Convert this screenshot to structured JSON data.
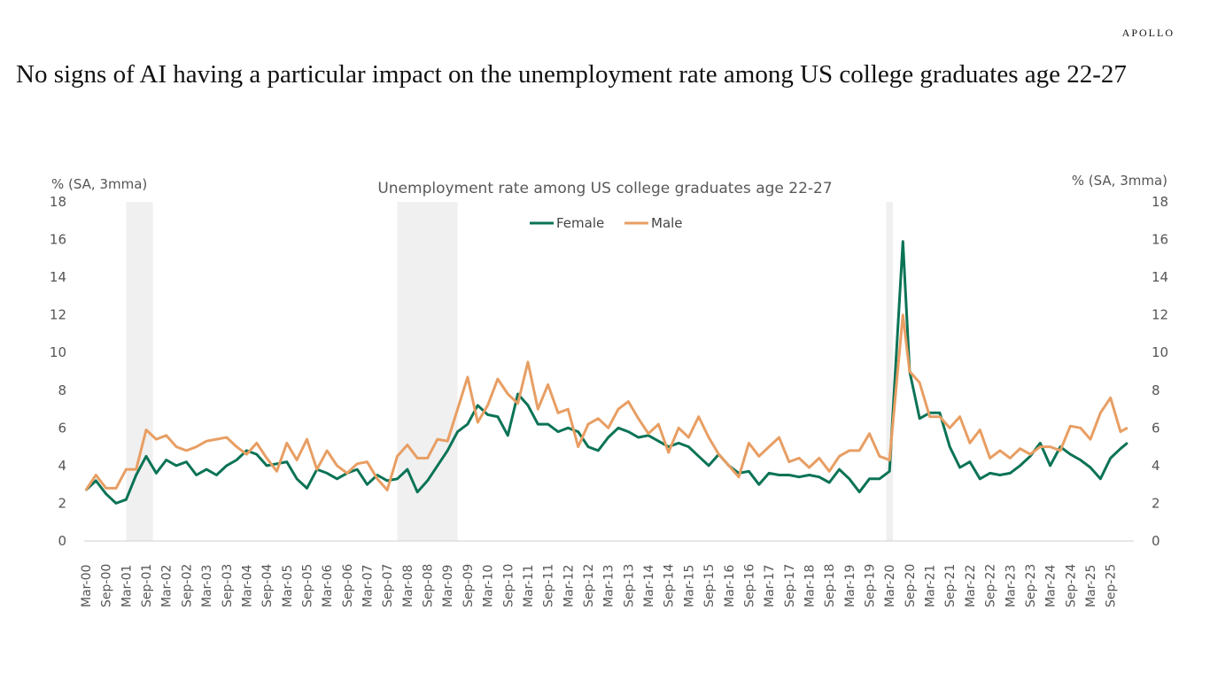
{
  "brand": "APOLLO",
  "headline": "No signs of AI having a particular impact on the unemployment rate among US college graduates age 22-27",
  "chart_data": {
    "type": "line",
    "title": "Unemployment rate among US college graduates age 22-27",
    "ylabel_left": "% (SA, 3mma)",
    "ylabel_right": "% (SA, 3mma)",
    "ylim": [
      0,
      18
    ],
    "yticks": [
      0,
      2,
      4,
      6,
      8,
      10,
      12,
      14,
      16,
      18
    ],
    "grid": false,
    "legend": "top-center",
    "xticks": [
      "Mar-00",
      "Sep-00",
      "Mar-01",
      "Sep-01",
      "Mar-02",
      "Sep-02",
      "Mar-03",
      "Sep-03",
      "Mar-04",
      "Sep-04",
      "Mar-05",
      "Sep-05",
      "Mar-06",
      "Sep-06",
      "Mar-07",
      "Sep-07",
      "Mar-08",
      "Sep-08",
      "Mar-09",
      "Sep-09",
      "Mar-10",
      "Sep-10",
      "Mar-11",
      "Sep-11",
      "Mar-12",
      "Sep-12",
      "Mar-13",
      "Sep-13",
      "Mar-14",
      "Sep-14",
      "Mar-15",
      "Sep-15",
      "Mar-16",
      "Sep-16",
      "Mar-17",
      "Sep-17",
      "Mar-18",
      "Sep-18",
      "Mar-19",
      "Sep-19",
      "Mar-20",
      "Sep-20",
      "Mar-21",
      "Sep-21",
      "Mar-22",
      "Sep-22",
      "Mar-23",
      "Sep-23",
      "Mar-24",
      "Sep-24",
      "Mar-25",
      "Sep-25"
    ],
    "x_end": "Mar-26",
    "recession_shading": [
      [
        "Mar-01",
        "Nov-01"
      ],
      [
        "Dec-07",
        "Jun-09"
      ],
      [
        "Feb-20",
        "Apr-20"
      ]
    ],
    "x": [
      "Mar-00",
      "Jun-00",
      "Sep-00",
      "Dec-00",
      "Mar-01",
      "Jun-01",
      "Sep-01",
      "Dec-01",
      "Mar-02",
      "Jun-02",
      "Sep-02",
      "Dec-02",
      "Mar-03",
      "Jun-03",
      "Sep-03",
      "Dec-03",
      "Mar-04",
      "Jun-04",
      "Sep-04",
      "Dec-04",
      "Mar-05",
      "Jun-05",
      "Sep-05",
      "Dec-05",
      "Mar-06",
      "Jun-06",
      "Sep-06",
      "Dec-06",
      "Mar-07",
      "Jun-07",
      "Sep-07",
      "Dec-07",
      "Mar-08",
      "Jun-08",
      "Sep-08",
      "Dec-08",
      "Mar-09",
      "Jun-09",
      "Sep-09",
      "Dec-09",
      "Mar-10",
      "Jun-10",
      "Sep-10",
      "Dec-10",
      "Mar-11",
      "Jun-11",
      "Sep-11",
      "Dec-11",
      "Mar-12",
      "Jun-12",
      "Sep-12",
      "Dec-12",
      "Mar-13",
      "Jun-13",
      "Sep-13",
      "Dec-13",
      "Mar-14",
      "Jun-14",
      "Sep-14",
      "Dec-14",
      "Mar-15",
      "Jun-15",
      "Sep-15",
      "Dec-15",
      "Mar-16",
      "Jun-16",
      "Sep-16",
      "Dec-16",
      "Mar-17",
      "Jun-17",
      "Sep-17",
      "Dec-17",
      "Mar-18",
      "Jun-18",
      "Sep-18",
      "Dec-18",
      "Mar-19",
      "Jun-19",
      "Sep-19",
      "Dec-19",
      "Mar-20",
      "Jul-20",
      "Sep-20",
      "Dec-20",
      "Mar-21",
      "Jun-21",
      "Sep-21",
      "Dec-21",
      "Mar-22",
      "Jun-22",
      "Sep-22",
      "Dec-22",
      "Mar-23",
      "Jun-23",
      "Sep-23",
      "Dec-23",
      "Mar-24",
      "Jun-24",
      "Sep-24",
      "Dec-24",
      "Mar-25",
      "Jun-25",
      "Sep-25",
      "Dec-25",
      "Feb-26"
    ],
    "series": [
      {
        "name": "Female",
        "color": "#0b7356",
        "values": [
          2.7,
          3.2,
          2.5,
          2.0,
          2.2,
          3.5,
          4.5,
          3.6,
          4.3,
          4.0,
          4.2,
          3.5,
          3.8,
          3.5,
          4.0,
          4.3,
          4.8,
          4.6,
          4.0,
          4.1,
          4.2,
          3.3,
          2.8,
          3.8,
          3.6,
          3.3,
          3.6,
          3.8,
          3.0,
          3.5,
          3.2,
          3.3,
          3.8,
          2.6,
          3.2,
          4.0,
          4.8,
          5.8,
          6.2,
          7.2,
          6.7,
          6.6,
          5.6,
          7.8,
          7.2,
          6.2,
          6.2,
          5.8,
          6.0,
          5.8,
          5.0,
          4.8,
          5.5,
          6.0,
          5.8,
          5.5,
          5.6,
          5.3,
          5.0,
          5.2,
          5.0,
          4.5,
          4.0,
          4.6,
          4.0,
          3.6,
          3.7,
          3.0,
          3.6,
          3.5,
          3.5,
          3.4,
          3.5,
          3.4,
          3.1,
          3.8,
          3.3,
          2.6,
          3.3,
          3.3,
          3.7,
          15.9,
          9.0,
          6.5,
          6.8,
          6.8,
          5.0,
          3.9,
          4.2,
          3.3,
          3.6,
          3.5,
          3.6,
          4.0,
          4.5,
          5.2,
          4.0,
          5.0,
          4.6,
          4.3,
          3.9,
          3.3,
          4.4,
          4.9,
          5.2
        ]
      },
      {
        "name": "Male",
        "color": "#e89e63",
        "values": [
          2.7,
          3.5,
          2.8,
          2.8,
          3.8,
          3.8,
          5.9,
          5.4,
          5.6,
          5.0,
          4.8,
          5.0,
          5.3,
          5.4,
          5.5,
          5.0,
          4.6,
          5.2,
          4.4,
          3.7,
          5.2,
          4.3,
          5.4,
          3.8,
          4.8,
          4.0,
          3.6,
          4.1,
          4.2,
          3.3,
          2.7,
          4.5,
          5.1,
          4.4,
          4.4,
          5.4,
          5.3,
          7.0,
          8.7,
          6.3,
          7.2,
          8.6,
          7.8,
          7.3,
          9.5,
          7.0,
          8.3,
          6.8,
          7.0,
          5.0,
          6.2,
          6.5,
          6.0,
          7.0,
          7.4,
          6.5,
          5.7,
          6.2,
          4.7,
          6.0,
          5.5,
          6.6,
          5.5,
          4.6,
          4.0,
          3.4,
          5.2,
          4.5,
          5.0,
          5.5,
          4.2,
          4.4,
          3.9,
          4.4,
          3.7,
          4.5,
          4.8,
          4.8,
          5.7,
          4.5,
          4.3,
          12.0,
          9.0,
          8.4,
          6.6,
          6.6,
          6.0,
          6.6,
          5.2,
          5.9,
          4.4,
          4.8,
          4.4,
          4.9,
          4.6,
          5.0,
          5.0,
          4.8,
          6.1,
          6.0,
          5.4,
          6.8,
          7.6,
          5.8,
          6.0
        ]
      }
    ]
  }
}
